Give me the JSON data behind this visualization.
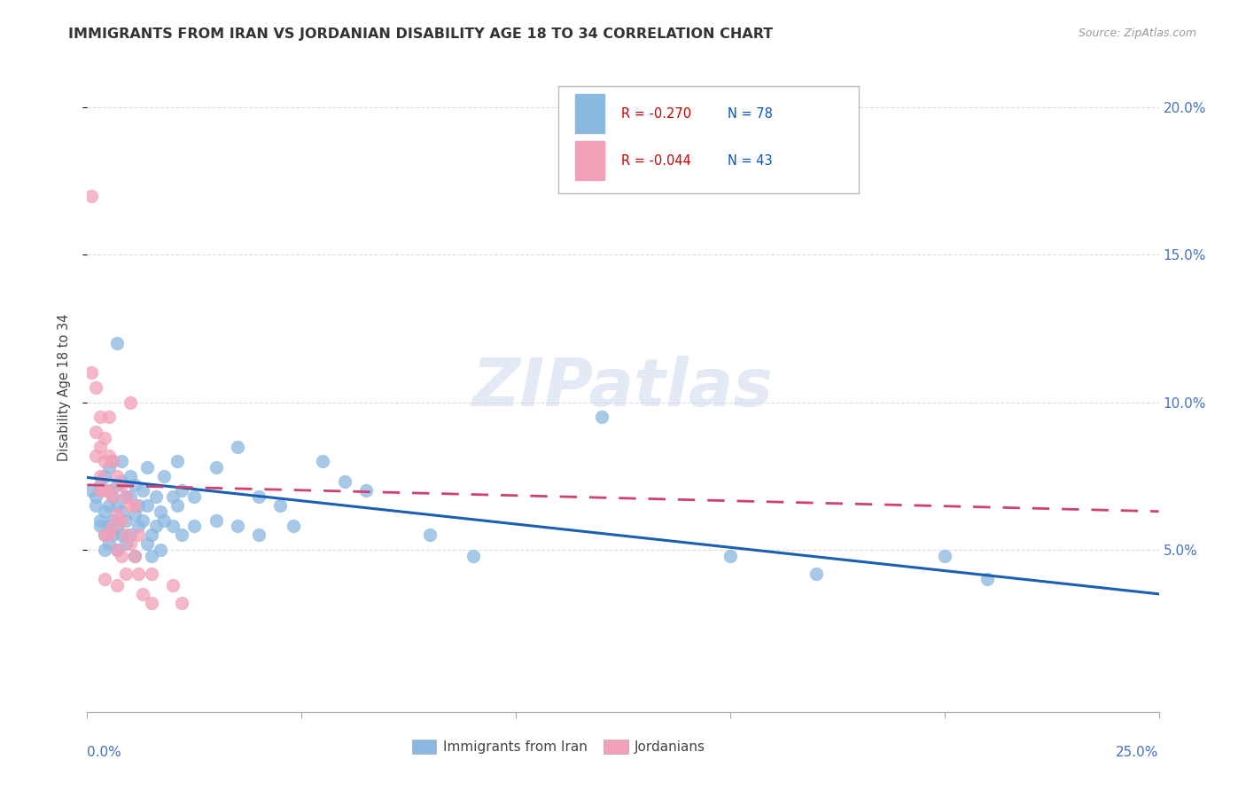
{
  "title": "IMMIGRANTS FROM IRAN VS JORDANIAN DISABILITY AGE 18 TO 34 CORRELATION CHART",
  "source": "Source: ZipAtlas.com",
  "ylabel": "Disability Age 18 to 34",
  "ytick_values": [
    0.05,
    0.1,
    0.15,
    0.2
  ],
  "xlim": [
    0.0,
    0.25
  ],
  "ylim": [
    -0.005,
    0.215
  ],
  "blue_color": "#8ab8e0",
  "pink_color": "#f2a0b8",
  "blue_line_color": "#1a5fb4",
  "pink_line_color": "#d04070",
  "blue_label": "Immigrants from Iran",
  "pink_label": "Jordanians",
  "legend_R_blue": "R = -0.270",
  "legend_N_blue": "N = 78",
  "legend_R_pink": "R = -0.044",
  "legend_N_pink": "N = 43",
  "watermark": "ZIPatlas",
  "grid_color": "#dddddd",
  "blue_scatter": [
    [
      0.001,
      0.07
    ],
    [
      0.002,
      0.068
    ],
    [
      0.002,
      0.065
    ],
    [
      0.003,
      0.072
    ],
    [
      0.003,
      0.06
    ],
    [
      0.003,
      0.058
    ],
    [
      0.004,
      0.075
    ],
    [
      0.004,
      0.063
    ],
    [
      0.004,
      0.055
    ],
    [
      0.004,
      0.05
    ],
    [
      0.005,
      0.078
    ],
    [
      0.005,
      0.07
    ],
    [
      0.005,
      0.065
    ],
    [
      0.005,
      0.058
    ],
    [
      0.005,
      0.052
    ],
    [
      0.006,
      0.08
    ],
    [
      0.006,
      0.068
    ],
    [
      0.006,
      0.06
    ],
    [
      0.006,
      0.055
    ],
    [
      0.007,
      0.12
    ],
    [
      0.007,
      0.072
    ],
    [
      0.007,
      0.065
    ],
    [
      0.007,
      0.058
    ],
    [
      0.007,
      0.05
    ],
    [
      0.008,
      0.08
    ],
    [
      0.008,
      0.073
    ],
    [
      0.008,
      0.063
    ],
    [
      0.008,
      0.055
    ],
    [
      0.009,
      0.068
    ],
    [
      0.009,
      0.06
    ],
    [
      0.009,
      0.052
    ],
    [
      0.01,
      0.075
    ],
    [
      0.01,
      0.068
    ],
    [
      0.01,
      0.055
    ],
    [
      0.011,
      0.072
    ],
    [
      0.011,
      0.062
    ],
    [
      0.011,
      0.048
    ],
    [
      0.012,
      0.065
    ],
    [
      0.012,
      0.058
    ],
    [
      0.013,
      0.07
    ],
    [
      0.013,
      0.06
    ],
    [
      0.014,
      0.078
    ],
    [
      0.014,
      0.065
    ],
    [
      0.014,
      0.052
    ],
    [
      0.015,
      0.055
    ],
    [
      0.015,
      0.048
    ],
    [
      0.016,
      0.068
    ],
    [
      0.016,
      0.058
    ],
    [
      0.017,
      0.063
    ],
    [
      0.017,
      0.05
    ],
    [
      0.018,
      0.075
    ],
    [
      0.018,
      0.06
    ],
    [
      0.02,
      0.068
    ],
    [
      0.02,
      0.058
    ],
    [
      0.021,
      0.08
    ],
    [
      0.021,
      0.065
    ],
    [
      0.022,
      0.07
    ],
    [
      0.022,
      0.055
    ],
    [
      0.025,
      0.068
    ],
    [
      0.025,
      0.058
    ],
    [
      0.03,
      0.078
    ],
    [
      0.03,
      0.06
    ],
    [
      0.035,
      0.085
    ],
    [
      0.035,
      0.058
    ],
    [
      0.04,
      0.068
    ],
    [
      0.04,
      0.055
    ],
    [
      0.045,
      0.065
    ],
    [
      0.048,
      0.058
    ],
    [
      0.055,
      0.08
    ],
    [
      0.06,
      0.073
    ],
    [
      0.065,
      0.07
    ],
    [
      0.08,
      0.055
    ],
    [
      0.09,
      0.048
    ],
    [
      0.12,
      0.095
    ],
    [
      0.15,
      0.048
    ],
    [
      0.17,
      0.042
    ],
    [
      0.2,
      0.048
    ],
    [
      0.21,
      0.04
    ]
  ],
  "pink_scatter": [
    [
      0.001,
      0.17
    ],
    [
      0.001,
      0.11
    ],
    [
      0.002,
      0.105
    ],
    [
      0.002,
      0.09
    ],
    [
      0.002,
      0.082
    ],
    [
      0.003,
      0.095
    ],
    [
      0.003,
      0.085
    ],
    [
      0.003,
      0.075
    ],
    [
      0.003,
      0.07
    ],
    [
      0.004,
      0.088
    ],
    [
      0.004,
      0.08
    ],
    [
      0.004,
      0.07
    ],
    [
      0.004,
      0.055
    ],
    [
      0.004,
      0.04
    ],
    [
      0.005,
      0.095
    ],
    [
      0.005,
      0.082
    ],
    [
      0.005,
      0.07
    ],
    [
      0.005,
      0.055
    ],
    [
      0.006,
      0.08
    ],
    [
      0.006,
      0.068
    ],
    [
      0.006,
      0.058
    ],
    [
      0.007,
      0.075
    ],
    [
      0.007,
      0.062
    ],
    [
      0.007,
      0.05
    ],
    [
      0.007,
      0.038
    ],
    [
      0.008,
      0.072
    ],
    [
      0.008,
      0.06
    ],
    [
      0.008,
      0.048
    ],
    [
      0.009,
      0.068
    ],
    [
      0.009,
      0.055
    ],
    [
      0.009,
      0.042
    ],
    [
      0.01,
      0.065
    ],
    [
      0.01,
      0.052
    ],
    [
      0.01,
      0.1
    ],
    [
      0.011,
      0.065
    ],
    [
      0.011,
      0.048
    ],
    [
      0.012,
      0.055
    ],
    [
      0.012,
      0.042
    ],
    [
      0.013,
      0.035
    ],
    [
      0.015,
      0.042
    ],
    [
      0.015,
      0.032
    ],
    [
      0.02,
      0.038
    ],
    [
      0.022,
      0.032
    ]
  ],
  "blue_trendline": [
    [
      0.0,
      0.0745
    ],
    [
      0.25,
      0.035
    ]
  ],
  "pink_trendline": [
    [
      0.0,
      0.072
    ],
    [
      0.25,
      0.063
    ]
  ]
}
